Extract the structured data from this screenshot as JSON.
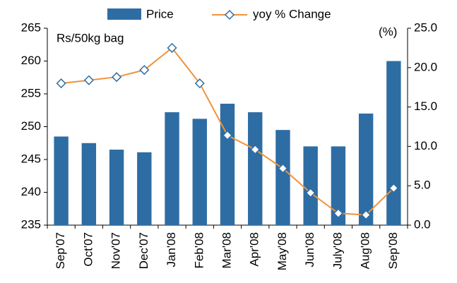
{
  "chart_data": {
    "type": "bar_line",
    "y_unit_label": "Rs/50kg bag",
    "y2_unit_label": "(%)",
    "categories": [
      "Sep'07",
      "Oct'07",
      "Nov'07",
      "Dec'07",
      "Jan'08",
      "Feb'08",
      "Mar'08",
      "Apr'08",
      "May'08",
      "Jun'08",
      "July'08",
      "Aug'08",
      "Sep'08"
    ],
    "series": [
      {
        "name": "Price",
        "type": "bar",
        "color": "#2e6da4",
        "values": [
          248.5,
          247.5,
          246.5,
          246.1,
          252.2,
          251.2,
          253.5,
          252.2,
          249.5,
          247.0,
          247.0,
          252.0,
          260.0
        ]
      },
      {
        "name": "yoy % Change",
        "type": "line",
        "axis": "y2",
        "color": "#f0923a",
        "marker_color": "#2e6da4",
        "values": [
          18.0,
          18.4,
          18.8,
          19.7,
          22.5,
          18.0,
          11.4,
          9.6,
          7.2,
          4.1,
          1.5,
          1.3,
          4.7
        ]
      }
    ],
    "ylim": [
      235,
      265
    ],
    "yticks": [
      235,
      240,
      245,
      250,
      255,
      260,
      265
    ],
    "y2lim": [
      0,
      25
    ],
    "y2ticks": [
      {
        "value": 0,
        "label": "0.0"
      },
      {
        "value": 5,
        "label": "5.0"
      },
      {
        "value": 10,
        "label": "10.0"
      },
      {
        "value": 15,
        "label": "15.0"
      },
      {
        "value": 20,
        "label": "20.0"
      },
      {
        "value": 25,
        "label": "25.0"
      }
    ],
    "grid": false,
    "legend": "top"
  }
}
